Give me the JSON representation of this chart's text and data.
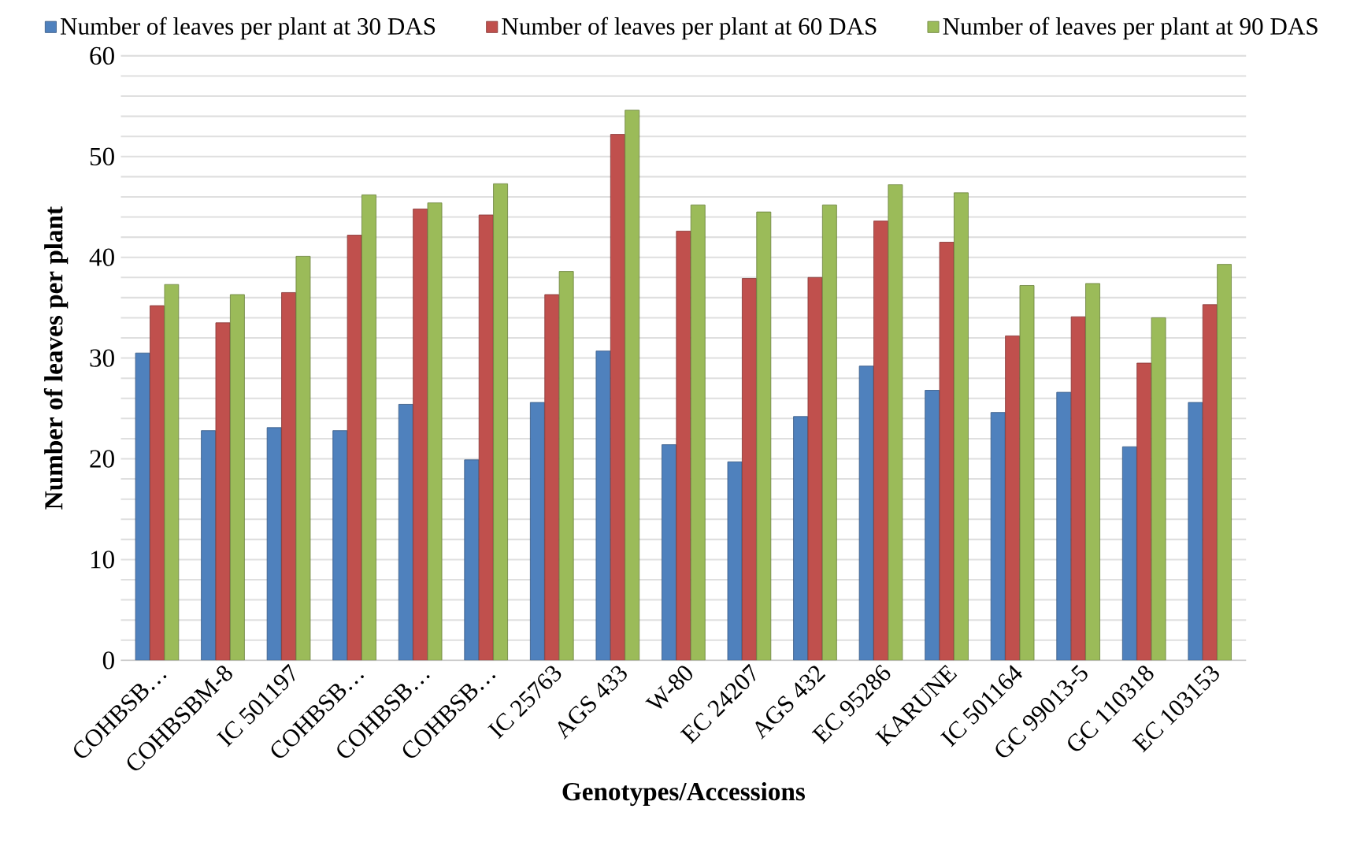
{
  "chart_data": {
    "type": "bar",
    "xlabel": "Genotypes/Accessions",
    "ylabel": "Number of leaves per plant",
    "categories": [
      "COHBSB…",
      "COHBSBM-8",
      "IC 501197",
      "COHBSB…",
      "COHBSB…",
      "COHBSB…",
      "IC 25763",
      "AGS 433",
      "W-80",
      "EC 24207",
      "AGS 432",
      "EC 95286",
      "KARUNE",
      "IC 501164",
      "GC 99013-5",
      "GC 110318",
      "EC 103153"
    ],
    "series": [
      {
        "name": "Number of leaves per plant at 30 DAS",
        "color": "#4f81bd",
        "values": [
          30.5,
          22.8,
          23.1,
          22.8,
          25.4,
          19.9,
          25.6,
          30.7,
          21.4,
          19.7,
          24.2,
          29.2,
          26.8,
          24.6,
          26.6,
          21.2,
          25.6
        ]
      },
      {
        "name": "Number of leaves per plant at 60 DAS",
        "color": "#c0504d",
        "values": [
          35.2,
          33.5,
          36.5,
          42.2,
          44.8,
          44.2,
          36.3,
          52.2,
          42.6,
          37.9,
          38.0,
          43.6,
          41.5,
          32.2,
          34.1,
          29.5,
          35.3
        ]
      },
      {
        "name": "Number of leaves per plant at 90 DAS",
        "color": "#9bbb59",
        "values": [
          37.3,
          36.3,
          40.1,
          46.2,
          45.4,
          47.3,
          38.6,
          54.6,
          45.2,
          44.5,
          45.2,
          47.2,
          46.4,
          37.2,
          37.4,
          34.0,
          39.3
        ]
      }
    ],
    "ylim": [
      0,
      60
    ],
    "yticks": [
      0,
      {
        "value": 2,
        "label": null
      },
      {
        "value": 4,
        "label": null
      },
      {
        "value": 6,
        "label": null
      },
      {
        "value": 8,
        "label": null
      },
      10,
      {
        "value": 12,
        "label": null
      },
      {
        "value": 14,
        "label": null
      },
      {
        "value": 16,
        "label": null
      },
      {
        "value": 18,
        "label": null
      },
      20,
      {
        "value": 22,
        "label": null
      },
      {
        "value": 24,
        "label": null
      },
      {
        "value": 26,
        "label": null
      },
      {
        "value": 28,
        "label": null
      },
      30,
      {
        "value": 32,
        "label": null
      },
      {
        "value": 34,
        "label": null
      },
      {
        "value": 36,
        "label": null
      },
      {
        "value": 38,
        "label": null
      },
      40,
      {
        "value": 42,
        "label": null
      },
      {
        "value": 44,
        "label": null
      },
      {
        "value": 46,
        "label": null
      },
      {
        "value": 48,
        "label": null
      },
      50,
      {
        "value": 52,
        "label": null
      },
      {
        "value": 54,
        "label": null
      },
      {
        "value": 56,
        "label": null
      },
      {
        "value": 58,
        "label": null
      },
      60
    ],
    "grid": "y",
    "legend": "top"
  }
}
